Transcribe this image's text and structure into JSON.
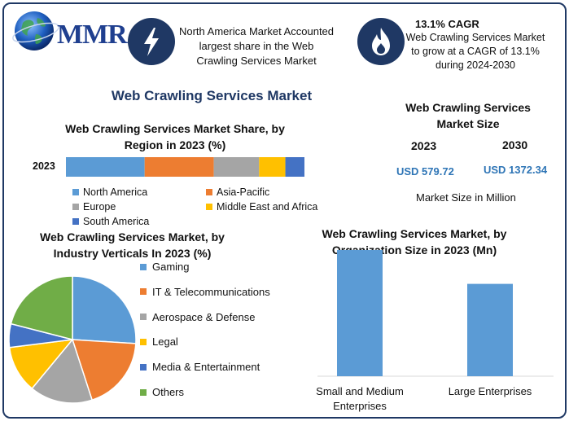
{
  "logo": {
    "text": "MMR"
  },
  "header": {
    "box1_text": "North America Market Accounted largest share in the Web Crawling Services Market",
    "box2_title": "13.1% CAGR",
    "box2_text": "Web Crawling Services Market to grow at a CAGR of 13.1% during 2024-2030",
    "icon1": "lightning-icon",
    "icon2": "flame-icon"
  },
  "main_title": "Web Crawling Services Market",
  "market_size": {
    "title": "Web Crawling Services Market Size",
    "year1": "2023",
    "year2": "2030",
    "value1": "USD 579.72",
    "value2": "USD 1372.34",
    "unit_note": "Market Size in Million"
  },
  "colors": {
    "blue": "#5b9bd5",
    "orange": "#ed7d31",
    "gray": "#a5a5a5",
    "yellow": "#ffc000",
    "darkblue": "#4472c4",
    "green": "#70ad47",
    "navy": "#1f3864"
  },
  "chart_data": [
    {
      "type": "bar",
      "orientation": "horizontal-stacked",
      "title": "Web Crawling Services Market Share, by Region in 2023 (%)",
      "categories": [
        "2023"
      ],
      "series": [
        {
          "name": "North America",
          "values": [
            33
          ],
          "color": "#5b9bd5"
        },
        {
          "name": "Asia-Pacific",
          "values": [
            29
          ],
          "color": "#ed7d31"
        },
        {
          "name": "Europe",
          "values": [
            19
          ],
          "color": "#a5a5a5"
        },
        {
          "name": "Middle East and Africa",
          "values": [
            11
          ],
          "color": "#ffc000"
        },
        {
          "name": "South America",
          "values": [
            8
          ],
          "color": "#4472c4"
        }
      ],
      "xlim": [
        0,
        100
      ],
      "legend": "bottom"
    },
    {
      "type": "pie",
      "title": "Web Crawling Services Market, by Industry Verticals In 2023 (%)",
      "labels": [
        "Gaming",
        "IT & Telecommunications",
        "Aerospace & Defense",
        "Legal",
        "Media & Entertainment",
        "Others"
      ],
      "values": [
        26,
        19,
        16,
        12,
        6,
        21
      ],
      "colors": [
        "#5b9bd5",
        "#ed7d31",
        "#a5a5a5",
        "#ffc000",
        "#4472c4",
        "#70ad47"
      ],
      "legend": "right"
    },
    {
      "type": "bar",
      "title": "Web Crawling Services Market, by Organization Size in 2023 (Mn)",
      "categories": [
        "Small and Medium Enterprises",
        "Large Enterprises"
      ],
      "values": [
        335,
        245
      ],
      "ylim": [
        0,
        350
      ],
      "color": "#5b9bd5",
      "grid": false
    }
  ]
}
